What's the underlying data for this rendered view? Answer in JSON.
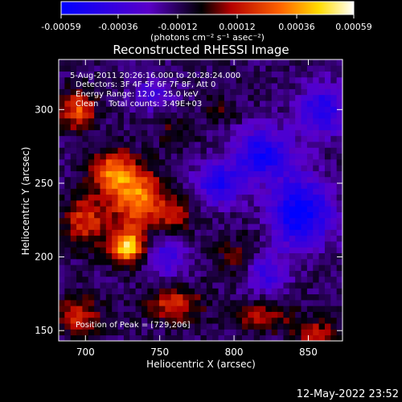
{
  "chart_data": {
    "type": "heatmap",
    "title": "Reconstructed RHESSI Image",
    "xlabel": "Heliocentric X (arcsec)",
    "ylabel": "Heliocentric Y (arcsec)",
    "xlim": [
      682,
      873
    ],
    "ylim": [
      143,
      334
    ],
    "x_ticks": [
      700,
      750,
      800,
      850
    ],
    "y_ticks": [
      150,
      200,
      250,
      300
    ],
    "annotations": [
      "5-Aug-2011 20:26:16.000 to 20:28:24.000",
      "Detectors: 3F 4F 5F 6F 7F 8F, Att 0",
      "Energy Range: 12.0 - 25.0 keV",
      "Clean    Total counts: 3.49E+03"
    ],
    "peak_label": "Position of Peak = [729,206]",
    "peak": [
      729,
      206
    ],
    "colorbar": {
      "range": [
        -0.00059,
        0.00059
      ],
      "tick_labels": [
        "-0.00059",
        "-0.00036",
        "-0.00012",
        "0.00012",
        "0.00036",
        "0.00059"
      ],
      "unit_label": "(photons cm⁻² s⁻¹ asec⁻²)",
      "colormap": [
        "#0000ff",
        "#5a00c8",
        "#000000",
        "#b40000",
        "#ff6400",
        "#ffdc00",
        "#ffffff"
      ]
    },
    "grid": false,
    "legend": "none",
    "sources": [
      {
        "x": 728,
        "y": 207,
        "amp": 0.00058,
        "sx": 8,
        "sy": 8
      },
      {
        "x": 735,
        "y": 240,
        "amp": 0.00045,
        "sx": 12,
        "sy": 14
      },
      {
        "x": 718,
        "y": 258,
        "amp": 0.0004,
        "sx": 10,
        "sy": 10
      },
      {
        "x": 695,
        "y": 300,
        "amp": 0.00036,
        "sx": 8,
        "sy": 9
      },
      {
        "x": 700,
        "y": 225,
        "amp": 0.0003,
        "sx": 10,
        "sy": 12
      },
      {
        "x": 760,
        "y": 230,
        "amp": 0.00022,
        "sx": 8,
        "sy": 10
      },
      {
        "x": 695,
        "y": 160,
        "amp": 0.0003,
        "sx": 10,
        "sy": 8
      },
      {
        "x": 760,
        "y": 168,
        "amp": 0.0003,
        "sx": 12,
        "sy": 8
      },
      {
        "x": 820,
        "y": 160,
        "amp": 0.00022,
        "sx": 14,
        "sy": 7
      },
      {
        "x": 855,
        "y": 148,
        "amp": 0.00025,
        "sx": 10,
        "sy": 6
      },
      {
        "x": 805,
        "y": 200,
        "amp": 0.00015,
        "sx": 12,
        "sy": 10
      },
      {
        "x": 790,
        "y": 300,
        "amp": 0.00012,
        "sx": 8,
        "sy": 6
      },
      {
        "x": 760,
        "y": 285,
        "amp": 0.00012,
        "sx": 8,
        "sy": 8
      },
      {
        "x": 845,
        "y": 230,
        "amp": -0.0005,
        "sx": 14,
        "sy": 16
      },
      {
        "x": 820,
        "y": 270,
        "amp": -0.0004,
        "sx": 14,
        "sy": 12
      },
      {
        "x": 860,
        "y": 300,
        "amp": -0.00035,
        "sx": 12,
        "sy": 12
      },
      {
        "x": 790,
        "y": 250,
        "amp": -0.00035,
        "sx": 12,
        "sy": 10
      },
      {
        "x": 755,
        "y": 200,
        "amp": -0.00025,
        "sx": 10,
        "sy": 10
      },
      {
        "x": 820,
        "y": 190,
        "amp": -0.0003,
        "sx": 10,
        "sy": 10
      },
      {
        "x": 745,
        "y": 310,
        "amp": -0.0002,
        "sx": 10,
        "sy": 8
      }
    ]
  },
  "footer_timestamp": "12-May-2022 23:52"
}
